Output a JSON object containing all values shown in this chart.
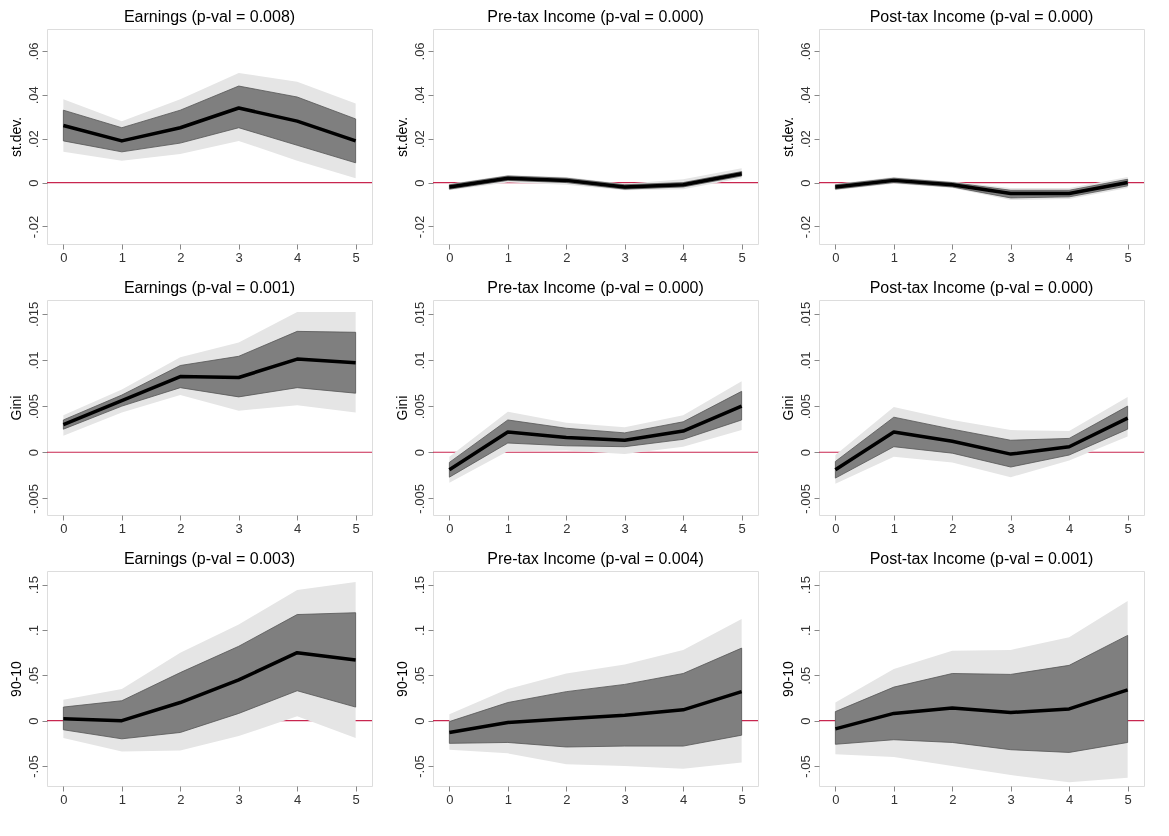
{
  "chart_data": [
    {
      "type": "line",
      "title": "Earnings (p-val = 0.008)",
      "ylabel": "st.dev.",
      "x": [
        0,
        1,
        2,
        3,
        4,
        5
      ],
      "xlim": [
        -0.28,
        5.28
      ],
      "xticks": [
        0,
        1,
        2,
        3,
        4,
        5
      ],
      "ylim": [
        -0.028,
        0.07
      ],
      "yticks": [
        {
          "value": -0.02,
          "label": "-.02"
        },
        0,
        {
          "value": 0.02,
          "label": ".02"
        },
        {
          "value": 0.04,
          "label": ".04"
        },
        {
          "value": 0.06,
          "label": ".06"
        }
      ],
      "grid": false,
      "ref_lines": [
        {
          "axis": "y",
          "value": 0,
          "color": "#c8264f"
        }
      ],
      "series": [
        {
          "type": "area",
          "color": "#e5e5e5",
          "values": [
            null,
            null,
            null,
            null,
            null,
            null
          ],
          "lower": [
            0.014,
            0.01,
            0.013,
            0.019,
            0.01,
            0.002
          ],
          "upper": [
            0.038,
            0.028,
            0.038,
            0.05,
            0.046,
            0.036
          ]
        },
        {
          "type": "area",
          "color": "#7f7f7f",
          "values": [
            null,
            null,
            null,
            null,
            null,
            null
          ],
          "lower": [
            0.019,
            0.014,
            0.018,
            0.025,
            0.017,
            0.009
          ],
          "upper": [
            0.033,
            0.025,
            0.033,
            0.044,
            0.039,
            0.029
          ]
        },
        {
          "type": "line",
          "color": "#000000",
          "values": [
            0.026,
            0.019,
            0.025,
            0.034,
            0.028,
            0.019
          ]
        }
      ]
    },
    {
      "type": "line",
      "title": "Pre-tax Income (p-val = 0.000)",
      "ylabel": "st.dev.",
      "x": [
        0,
        1,
        2,
        3,
        4,
        5
      ],
      "xlim": [
        -0.28,
        5.28
      ],
      "xticks": [
        0,
        1,
        2,
        3,
        4,
        5
      ],
      "ylim": [
        -0.028,
        0.07
      ],
      "yticks": [
        {
          "value": -0.02,
          "label": "-.02"
        },
        0,
        {
          "value": 0.02,
          "label": ".02"
        },
        {
          "value": 0.04,
          "label": ".04"
        },
        {
          "value": 0.06,
          "label": ".06"
        }
      ],
      "grid": false,
      "ref_lines": [
        {
          "axis": "y",
          "value": 0,
          "color": "#c8264f"
        }
      ],
      "series": [
        {
          "type": "area",
          "color": "#e5e5e5",
          "values": [
            null,
            null,
            null,
            null,
            null,
            null
          ],
          "lower": [
            -0.0035,
            0.0,
            -0.001,
            -0.0035,
            -0.003,
            0.002
          ],
          "upper": [
            -0.0005,
            0.0035,
            0.0025,
            -0.0005,
            0.0015,
            0.0065
          ]
        },
        {
          "type": "area",
          "color": "#7f7f7f",
          "values": [
            null,
            null,
            null,
            null,
            null,
            null
          ],
          "lower": [
            -0.003,
            0.001,
            0.0,
            -0.003,
            -0.002,
            0.003
          ],
          "upper": [
            -0.001,
            0.003,
            0.002,
            -0.001,
            0.0,
            0.005
          ]
        },
        {
          "type": "line",
          "color": "#000000",
          "values": [
            -0.002,
            0.002,
            0.001,
            -0.002,
            -0.001,
            0.004
          ]
        }
      ]
    },
    {
      "type": "line",
      "title": "Post-tax Income (p-val = 0.000)",
      "ylabel": "st.dev.",
      "x": [
        0,
        1,
        2,
        3,
        4,
        5
      ],
      "xlim": [
        -0.28,
        5.28
      ],
      "xticks": [
        0,
        1,
        2,
        3,
        4,
        5
      ],
      "ylim": [
        -0.028,
        0.07
      ],
      "yticks": [
        {
          "value": -0.02,
          "label": "-.02"
        },
        0,
        {
          "value": 0.02,
          "label": ".02"
        },
        {
          "value": 0.04,
          "label": ".04"
        },
        {
          "value": 0.06,
          "label": ".06"
        }
      ],
      "grid": false,
      "ref_lines": [
        {
          "axis": "y",
          "value": 0,
          "color": "#c8264f"
        }
      ],
      "series": [
        {
          "type": "area",
          "color": "#e5e5e5",
          "values": [
            null,
            null,
            null,
            null,
            null,
            null
          ],
          "lower": [
            -0.0035,
            -0.0005,
            -0.0025,
            -0.008,
            -0.0075,
            -0.0025
          ],
          "upper": [
            -0.0005,
            0.0025,
            0.0005,
            -0.0025,
            -0.0025,
            0.0025
          ]
        },
        {
          "type": "area",
          "color": "#7f7f7f",
          "values": [
            null,
            null,
            null,
            null,
            null,
            null
          ],
          "lower": [
            -0.003,
            0.0,
            -0.002,
            -0.007,
            -0.0065,
            -0.0015
          ],
          "upper": [
            -0.001,
            0.002,
            0.0,
            -0.0035,
            -0.0035,
            0.0015
          ]
        },
        {
          "type": "line",
          "color": "#000000",
          "values": [
            -0.002,
            0.001,
            -0.001,
            -0.005,
            -0.005,
            0.0
          ]
        }
      ]
    },
    {
      "type": "line",
      "title": "Earnings (p-val = 0.001)",
      "ylabel": "Gini",
      "x": [
        0,
        1,
        2,
        3,
        4,
        5
      ],
      "xlim": [
        -0.28,
        5.28
      ],
      "xticks": [
        0,
        1,
        2,
        3,
        4,
        5
      ],
      "ylim": [
        -0.0068,
        0.0165
      ],
      "yticks": [
        {
          "value": -0.005,
          "label": "-.005"
        },
        0,
        {
          "value": 0.005,
          "label": ".005"
        },
        {
          "value": 0.01,
          "label": ".01"
        },
        {
          "value": 0.015,
          "label": ".015"
        }
      ],
      "grid": false,
      "ref_lines": [
        {
          "axis": "y",
          "value": 0,
          "color": "#c8264f"
        }
      ],
      "series": [
        {
          "type": "area",
          "color": "#e5e5e5",
          "values": [
            null,
            null,
            null,
            null,
            null,
            null
          ],
          "lower": [
            0.0018,
            0.0043,
            0.0062,
            0.0045,
            0.0051,
            0.0043
          ],
          "upper": [
            0.004,
            0.0068,
            0.0103,
            0.0119,
            0.0152,
            0.0152
          ]
        },
        {
          "type": "area",
          "color": "#7f7f7f",
          "values": [
            null,
            null,
            null,
            null,
            null,
            null
          ],
          "lower": [
            0.0025,
            0.005,
            0.007,
            0.006,
            0.007,
            0.0064
          ],
          "upper": [
            0.0035,
            0.0062,
            0.0094,
            0.0104,
            0.0131,
            0.013
          ]
        },
        {
          "type": "line",
          "color": "#000000",
          "values": [
            0.003,
            0.0056,
            0.0082,
            0.0081,
            0.0101,
            0.0097
          ]
        }
      ]
    },
    {
      "type": "line",
      "title": "Pre-tax Income (p-val = 0.000)",
      "ylabel": "Gini",
      "x": [
        0,
        1,
        2,
        3,
        4,
        5
      ],
      "xlim": [
        -0.28,
        5.28
      ],
      "xticks": [
        0,
        1,
        2,
        3,
        4,
        5
      ],
      "ylim": [
        -0.0068,
        0.0165
      ],
      "yticks": [
        {
          "value": -0.005,
          "label": "-.005"
        },
        0,
        {
          "value": 0.005,
          "label": ".005"
        },
        {
          "value": 0.01,
          "label": ".01"
        },
        {
          "value": 0.015,
          "label": ".015"
        }
      ],
      "grid": false,
      "ref_lines": [
        {
          "axis": "y",
          "value": 0,
          "color": "#c8264f"
        }
      ],
      "series": [
        {
          "type": "area",
          "color": "#e5e5e5",
          "values": [
            null,
            null,
            null,
            null,
            null,
            null
          ],
          "lower": [
            -0.0033,
            0.0001,
            0.0002,
            -0.0002,
            0.0006,
            0.0024
          ],
          "upper": [
            -0.0005,
            0.0044,
            0.0032,
            0.0027,
            0.004,
            0.0077
          ]
        },
        {
          "type": "area",
          "color": "#7f7f7f",
          "values": [
            null,
            null,
            null,
            null,
            null,
            null
          ],
          "lower": [
            -0.0027,
            0.001,
            0.0007,
            0.0006,
            0.0014,
            0.0035
          ],
          "upper": [
            -0.0011,
            0.0035,
            0.0026,
            0.0021,
            0.0033,
            0.0066
          ]
        },
        {
          "type": "line",
          "color": "#000000",
          "values": [
            -0.0019,
            0.0022,
            0.0016,
            0.0013,
            0.0023,
            0.005
          ]
        }
      ]
    },
    {
      "type": "line",
      "title": "Post-tax Income (p-val = 0.000)",
      "ylabel": "Gini",
      "x": [
        0,
        1,
        2,
        3,
        4,
        5
      ],
      "xlim": [
        -0.28,
        5.28
      ],
      "xticks": [
        0,
        1,
        2,
        3,
        4,
        5
      ],
      "ylim": [
        -0.0068,
        0.0165
      ],
      "yticks": [
        {
          "value": -0.005,
          "label": "-.005"
        },
        0,
        {
          "value": 0.005,
          "label": ".005"
        },
        {
          "value": 0.01,
          "label": ".01"
        },
        {
          "value": 0.015,
          "label": ".015"
        }
      ],
      "grid": false,
      "ref_lines": [
        {
          "axis": "y",
          "value": 0,
          "color": "#c8264f"
        }
      ],
      "series": [
        {
          "type": "area",
          "color": "#e5e5e5",
          "values": [
            null,
            null,
            null,
            null,
            null,
            null
          ],
          "lower": [
            -0.0034,
            -0.0005,
            -0.0011,
            -0.0027,
            -0.0009,
            0.0017
          ],
          "upper": [
            -0.0003,
            0.0049,
            0.0035,
            0.0024,
            0.0023,
            0.006
          ]
        },
        {
          "type": "area",
          "color": "#7f7f7f",
          "values": [
            null,
            null,
            null,
            null,
            null,
            null
          ],
          "lower": [
            -0.0028,
            0.0006,
            -0.0001,
            -0.0016,
            -0.0003,
            0.0025
          ],
          "upper": [
            -0.001,
            0.0038,
            0.0025,
            0.0013,
            0.0015,
            0.005
          ]
        },
        {
          "type": "line",
          "color": "#000000",
          "values": [
            -0.0019,
            0.0022,
            0.0012,
            -0.0002,
            0.0006,
            0.0037
          ]
        }
      ]
    },
    {
      "type": "line",
      "title": "Earnings (p-val = 0.003)",
      "ylabel": "90-10",
      "x": [
        0,
        1,
        2,
        3,
        4,
        5
      ],
      "xlim": [
        -0.28,
        5.28
      ],
      "xticks": [
        0,
        1,
        2,
        3,
        4,
        5
      ],
      "ylim": [
        -0.072,
        0.165
      ],
      "yticks": [
        {
          "value": -0.05,
          "label": "-.05"
        },
        0,
        {
          "value": 0.05,
          "label": ".05"
        },
        {
          "value": 0.1,
          "label": ".1"
        },
        {
          "value": 0.15,
          "label": ".15"
        }
      ],
      "grid": false,
      "ref_lines": [
        {
          "axis": "y",
          "value": 0,
          "color": "#c8264f"
        }
      ],
      "series": [
        {
          "type": "area",
          "color": "#e5e5e5",
          "values": [
            null,
            null,
            null,
            null,
            null,
            null
          ],
          "lower": [
            -0.019,
            -0.034,
            -0.033,
            -0.017,
            0.005,
            -0.019
          ],
          "upper": [
            0.023,
            0.035,
            0.075,
            0.106,
            0.144,
            0.153
          ]
        },
        {
          "type": "area",
          "color": "#7f7f7f",
          "values": [
            null,
            null,
            null,
            null,
            null,
            null
          ],
          "lower": [
            -0.01,
            -0.02,
            -0.013,
            0.008,
            0.033,
            0.015
          ],
          "upper": [
            0.015,
            0.022,
            0.053,
            0.082,
            0.117,
            0.119
          ]
        },
        {
          "type": "line",
          "color": "#000000",
          "values": [
            0.002,
            0.0,
            0.02,
            0.045,
            0.075,
            0.067
          ]
        }
      ]
    },
    {
      "type": "line",
      "title": "Pre-tax Income (p-val = 0.004)",
      "ylabel": "90-10",
      "x": [
        0,
        1,
        2,
        3,
        4,
        5
      ],
      "xlim": [
        -0.28,
        5.28
      ],
      "xticks": [
        0,
        1,
        2,
        3,
        4,
        5
      ],
      "ylim": [
        -0.072,
        0.165
      ],
      "yticks": [
        {
          "value": -0.05,
          "label": "-.05"
        },
        0,
        {
          "value": 0.05,
          "label": ".05"
        },
        {
          "value": 0.1,
          "label": ".1"
        },
        {
          "value": 0.15,
          "label": ".15"
        }
      ],
      "grid": false,
      "ref_lines": [
        {
          "axis": "y",
          "value": 0,
          "color": "#c8264f"
        }
      ],
      "series": [
        {
          "type": "area",
          "color": "#e5e5e5",
          "values": [
            null,
            null,
            null,
            null,
            null,
            null
          ],
          "lower": [
            -0.032,
            -0.036,
            -0.048,
            -0.05,
            -0.053,
            -0.046
          ],
          "upper": [
            0.007,
            0.035,
            0.052,
            0.062,
            0.078,
            0.112
          ]
        },
        {
          "type": "area",
          "color": "#7f7f7f",
          "values": [
            null,
            null,
            null,
            null,
            null,
            null
          ],
          "lower": [
            -0.025,
            -0.024,
            -0.029,
            -0.028,
            -0.028,
            -0.016
          ],
          "upper": [
            -0.001,
            0.02,
            0.032,
            0.04,
            0.052,
            0.08
          ]
        },
        {
          "type": "line",
          "color": "#000000",
          "values": [
            -0.013,
            -0.002,
            0.002,
            0.006,
            0.012,
            0.032
          ]
        }
      ]
    },
    {
      "type": "line",
      "title": "Post-tax Income (p-val = 0.001)",
      "ylabel": "90-10",
      "x": [
        0,
        1,
        2,
        3,
        4,
        5
      ],
      "xlim": [
        -0.28,
        5.28
      ],
      "xticks": [
        0,
        1,
        2,
        3,
        4,
        5
      ],
      "ylim": [
        -0.072,
        0.165
      ],
      "yticks": [
        {
          "value": -0.05,
          "label": "-.05"
        },
        0,
        {
          "value": 0.05,
          "label": ".05"
        },
        {
          "value": 0.1,
          "label": ".1"
        },
        {
          "value": 0.15,
          "label": ".15"
        }
      ],
      "grid": false,
      "ref_lines": [
        {
          "axis": "y",
          "value": 0,
          "color": "#c8264f"
        }
      ],
      "series": [
        {
          "type": "area",
          "color": "#e5e5e5",
          "values": [
            null,
            null,
            null,
            null,
            null,
            null
          ],
          "lower": [
            -0.037,
            -0.04,
            -0.05,
            -0.06,
            -0.068,
            -0.063
          ],
          "upper": [
            0.02,
            0.057,
            0.077,
            0.078,
            0.092,
            0.132
          ]
        },
        {
          "type": "area",
          "color": "#7f7f7f",
          "values": [
            null,
            null,
            null,
            null,
            null,
            null
          ],
          "lower": [
            -0.026,
            -0.021,
            -0.024,
            -0.032,
            -0.035,
            -0.024
          ],
          "upper": [
            0.01,
            0.037,
            0.052,
            0.051,
            0.061,
            0.094
          ]
        },
        {
          "type": "line",
          "color": "#000000",
          "values": [
            -0.009,
            0.008,
            0.014,
            0.009,
            0.013,
            0.034
          ]
        }
      ]
    }
  ]
}
